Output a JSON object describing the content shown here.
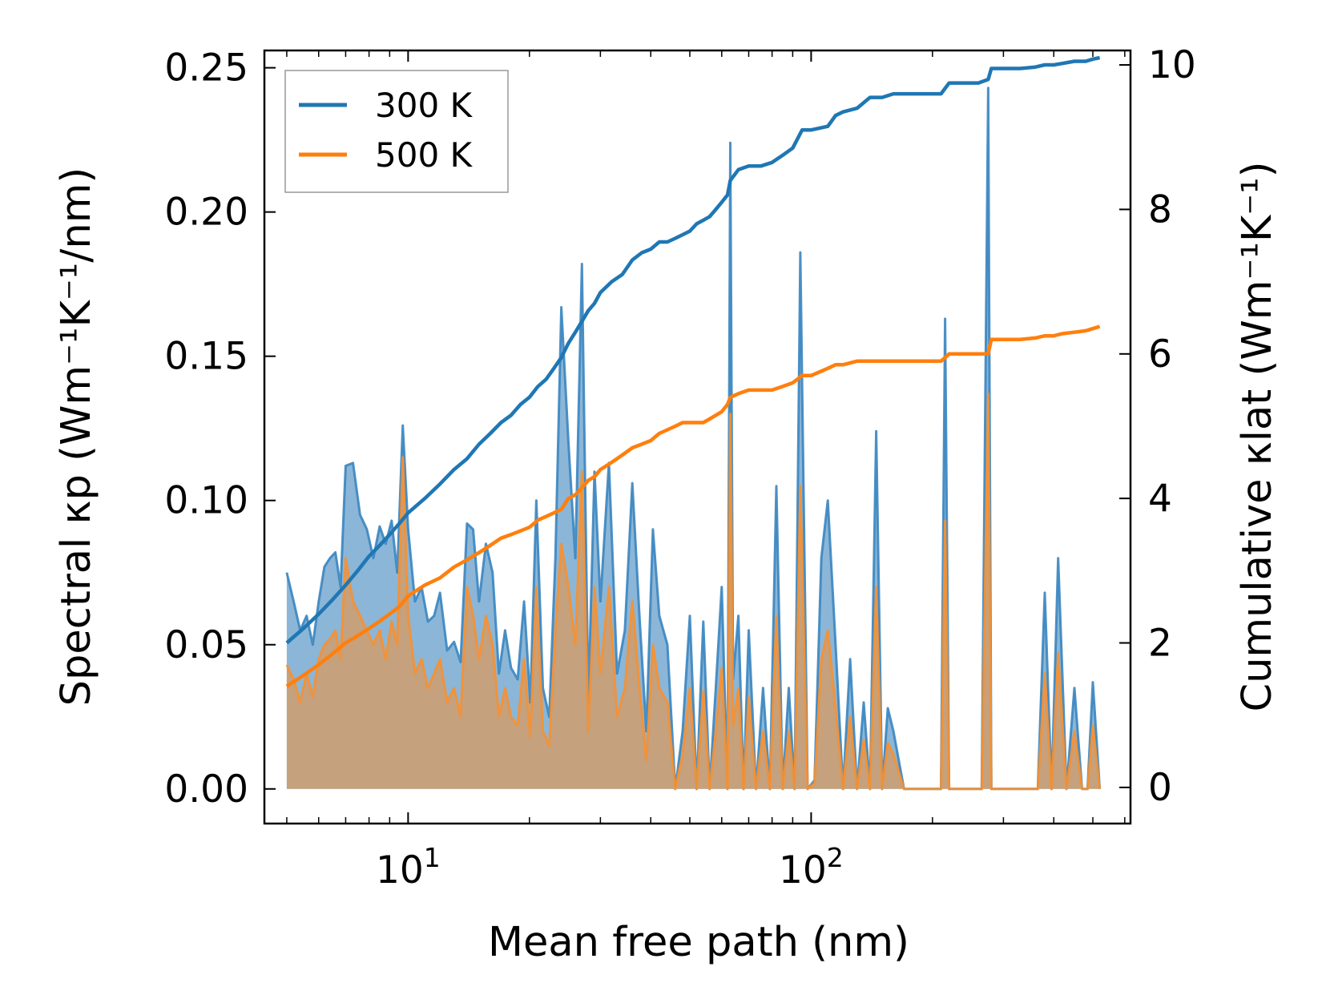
{
  "chart_data": {
    "type": "area",
    "title": "",
    "xlabel": "Mean free path (nm)",
    "ylabel": "Spectral κp (Wm⁻¹K⁻¹/nm)",
    "y2label": "Cumulative κlat (Wm⁻¹K⁻¹)",
    "xscale": "log",
    "xlim": [
      4.4,
      620
    ],
    "ylim": [
      -0.012,
      0.256
    ],
    "y2lim": [
      -0.5,
      10.2
    ],
    "x_ticks": [
      10,
      100
    ],
    "x_tick_labels": [
      "10^1",
      "10^2"
    ],
    "y_ticks": [
      0.0,
      0.05,
      0.1,
      0.15,
      0.2,
      0.25
    ],
    "y_tick_labels": [
      "0.00",
      "0.05",
      "0.10",
      "0.15",
      "0.20",
      "0.25"
    ],
    "y2_ticks": [
      0,
      2,
      4,
      6,
      8,
      10
    ],
    "y2_tick_labels": [
      "0",
      "2",
      "4",
      "6",
      "8",
      "10"
    ],
    "legend": {
      "position": "top-left",
      "entries": [
        "300 K",
        "500 K"
      ]
    },
    "colors": {
      "300 K": "#1f77b4",
      "500 K": "#ff7f0e"
    },
    "spectral": [
      {
        "name": "300 K",
        "x": [
          5.0,
          5.2,
          5.4,
          5.6,
          5.8,
          6.0,
          6.2,
          6.4,
          6.6,
          6.8,
          7.0,
          7.3,
          7.6,
          7.9,
          8.2,
          8.5,
          8.8,
          9.1,
          9.4,
          9.7,
          10.0,
          10.4,
          10.8,
          11.2,
          11.6,
          12.0,
          12.5,
          13.0,
          13.5,
          14.0,
          14.5,
          15.0,
          15.6,
          16.2,
          16.8,
          17.4,
          18.0,
          18.7,
          19.4,
          20.1,
          20.8,
          21.6,
          22.4,
          23.2,
          24.0,
          25.0,
          26.0,
          27.0,
          28.0,
          29.0,
          30.0,
          31.5,
          33.0,
          34.5,
          36.0,
          37.5,
          39.0,
          40.5,
          42.0,
          44.0,
          46.0,
          48.0,
          50.0,
          52.0,
          54.0,
          56.0,
          58.0,
          60.0,
          62.0,
          63.0,
          64.0,
          66.0,
          68.0,
          70.0,
          73.0,
          76.0,
          79.0,
          82.0,
          85.0,
          88.0,
          91.0,
          94.0,
          98.0,
          102.0,
          106.0,
          110.0,
          115.0,
          120.0,
          125.0,
          130.0,
          135.0,
          140.0,
          145.0,
          150.0,
          155.0,
          160.0,
          170.0,
          180.0,
          190.0,
          200.0,
          210.0,
          215.0,
          220.0,
          225.0,
          235.0,
          250.0,
          265.0,
          275.0,
          280.0,
          285.0,
          295.0,
          310.0,
          330.0,
          350.0,
          365.0,
          380.0,
          395.0,
          410.0,
          430.0,
          450.0,
          470.0,
          485.0,
          500.0,
          520.0
        ],
        "values": [
          0.075,
          0.065,
          0.055,
          0.06,
          0.05,
          0.065,
          0.077,
          0.08,
          0.082,
          0.07,
          0.112,
          0.113,
          0.095,
          0.09,
          0.08,
          0.091,
          0.085,
          0.093,
          0.075,
          0.126,
          0.09,
          0.065,
          0.07,
          0.058,
          0.06,
          0.068,
          0.048,
          0.051,
          0.044,
          0.092,
          0.09,
          0.065,
          0.085,
          0.075,
          0.04,
          0.055,
          0.042,
          0.038,
          0.065,
          0.03,
          0.1,
          0.035,
          0.025,
          0.08,
          0.167,
          0.12,
          0.08,
          0.182,
          0.03,
          0.11,
          0.065,
          0.113,
          0.04,
          0.055,
          0.106,
          0.06,
          0.02,
          0.09,
          0.06,
          0.05,
          0.0,
          0.02,
          0.06,
          0.0,
          0.058,
          0.0,
          0.035,
          0.07,
          0.0,
          0.224,
          0.038,
          0.06,
          0.0,
          0.055,
          0.0,
          0.035,
          0.0,
          0.105,
          0.0,
          0.035,
          0.0,
          0.186,
          0.0,
          0.003,
          0.08,
          0.1,
          0.05,
          0.0,
          0.045,
          0.0,
          0.03,
          0.0,
          0.124,
          0.0,
          0.028,
          0.02,
          0.0,
          0.0,
          0.0,
          0.0,
          0.0,
          0.163,
          0.0,
          0.0,
          0.0,
          0.0,
          0.0,
          0.243,
          0.0,
          0.0,
          0.0,
          0.0,
          0.0,
          0.0,
          0.0,
          0.068,
          0.0,
          0.08,
          0.0,
          0.035,
          0.0,
          0.0,
          0.037,
          0.0
        ]
      },
      {
        "name": "500 K",
        "x": [
          5.0,
          5.2,
          5.4,
          5.6,
          5.8,
          6.0,
          6.2,
          6.4,
          6.6,
          6.8,
          7.0,
          7.3,
          7.6,
          7.9,
          8.2,
          8.5,
          8.8,
          9.1,
          9.4,
          9.7,
          10.0,
          10.4,
          10.8,
          11.2,
          11.6,
          12.0,
          12.5,
          13.0,
          13.5,
          14.0,
          14.5,
          15.0,
          15.6,
          16.2,
          16.8,
          17.4,
          18.0,
          18.7,
          19.4,
          20.1,
          20.8,
          21.6,
          22.4,
          23.2,
          24.0,
          25.0,
          26.0,
          27.0,
          28.0,
          29.0,
          30.0,
          31.5,
          33.0,
          34.5,
          36.0,
          37.5,
          39.0,
          40.5,
          42.0,
          44.0,
          46.0,
          48.0,
          50.0,
          52.0,
          54.0,
          56.0,
          58.0,
          60.0,
          62.0,
          63.0,
          64.0,
          66.0,
          68.0,
          70.0,
          73.0,
          76.0,
          79.0,
          82.0,
          85.0,
          88.0,
          91.0,
          94.0,
          98.0,
          102.0,
          106.0,
          110.0,
          115.0,
          120.0,
          125.0,
          130.0,
          135.0,
          140.0,
          145.0,
          150.0,
          155.0,
          160.0,
          170.0,
          180.0,
          190.0,
          200.0,
          210.0,
          215.0,
          220.0,
          225.0,
          235.0,
          250.0,
          265.0,
          275.0,
          280.0,
          285.0,
          295.0,
          310.0,
          330.0,
          350.0,
          365.0,
          380.0,
          395.0,
          410.0,
          430.0,
          450.0,
          470.0,
          485.0,
          500.0,
          520.0
        ],
        "values": [
          0.043,
          0.038,
          0.03,
          0.04,
          0.032,
          0.045,
          0.05,
          0.052,
          0.055,
          0.045,
          0.08,
          0.065,
          0.06,
          0.055,
          0.05,
          0.055,
          0.045,
          0.058,
          0.05,
          0.115,
          0.06,
          0.04,
          0.045,
          0.035,
          0.04,
          0.045,
          0.03,
          0.035,
          0.025,
          0.07,
          0.06,
          0.045,
          0.06,
          0.05,
          0.025,
          0.035,
          0.025,
          0.022,
          0.045,
          0.018,
          0.07,
          0.02,
          0.015,
          0.055,
          0.085,
          0.07,
          0.05,
          0.11,
          0.02,
          0.07,
          0.04,
          0.07,
          0.025,
          0.035,
          0.065,
          0.035,
          0.01,
          0.05,
          0.035,
          0.03,
          0.0,
          0.012,
          0.035,
          0.0,
          0.034,
          0.0,
          0.02,
          0.042,
          0.0,
          0.13,
          0.022,
          0.035,
          0.0,
          0.032,
          0.0,
          0.02,
          0.0,
          0.06,
          0.0,
          0.02,
          0.0,
          0.105,
          0.0,
          0.002,
          0.045,
          0.055,
          0.028,
          0.0,
          0.025,
          0.0,
          0.017,
          0.0,
          0.07,
          0.0,
          0.016,
          0.012,
          0.0,
          0.0,
          0.0,
          0.0,
          0.0,
          0.093,
          0.0,
          0.0,
          0.0,
          0.0,
          0.0,
          0.137,
          0.0,
          0.0,
          0.0,
          0.0,
          0.0,
          0.0,
          0.0,
          0.04,
          0.0,
          0.047,
          0.0,
          0.02,
          0.0,
          0.0,
          0.022,
          0.0
        ]
      }
    ],
    "cumulative": [
      {
        "name": "300 K",
        "x": [
          5.0,
          5.5,
          6.0,
          6.5,
          7.0,
          7.5,
          8.0,
          8.5,
          9.0,
          9.5,
          10.0,
          11.0,
          12.0,
          13.0,
          14.0,
          15.0,
          16.0,
          17.0,
          18.0,
          19.0,
          20.0,
          21.0,
          22.0,
          23.0,
          24.0,
          25.0,
          26.0,
          27.0,
          28.0,
          29.0,
          30.0,
          32.0,
          34.0,
          36.0,
          38.0,
          40.0,
          42.0,
          44.0,
          46.0,
          48.0,
          50.0,
          52.0,
          54.0,
          56.0,
          58.0,
          60.0,
          62.0,
          63.0,
          66.0,
          70.0,
          75.0,
          80.0,
          85.0,
          90.0,
          95.0,
          100.0,
          110.0,
          115.0,
          120.0,
          130.0,
          140.0,
          150.0,
          160.0,
          180.0,
          200.0,
          210.0,
          220.0,
          240.0,
          260.0,
          275.0,
          280.0,
          285.0,
          300.0,
          330.0,
          360.0,
          380.0,
          400.0,
          420.0,
          450.0,
          480.0,
          500.0,
          520.0
        ],
        "values": [
          2.0,
          2.2,
          2.4,
          2.6,
          2.8,
          3.0,
          3.2,
          3.35,
          3.5,
          3.65,
          3.8,
          4.0,
          4.2,
          4.4,
          4.55,
          4.75,
          4.9,
          5.05,
          5.15,
          5.3,
          5.4,
          5.55,
          5.65,
          5.8,
          5.95,
          6.15,
          6.3,
          6.45,
          6.6,
          6.7,
          6.85,
          7.0,
          7.1,
          7.3,
          7.4,
          7.45,
          7.55,
          7.55,
          7.6,
          7.65,
          7.7,
          7.8,
          7.85,
          7.9,
          8.0,
          8.1,
          8.2,
          8.4,
          8.55,
          8.6,
          8.6,
          8.65,
          8.75,
          8.85,
          9.1,
          9.1,
          9.15,
          9.3,
          9.35,
          9.4,
          9.55,
          9.55,
          9.6,
          9.6,
          9.6,
          9.6,
          9.75,
          9.75,
          9.75,
          9.8,
          9.95,
          9.95,
          9.95,
          9.95,
          9.97,
          10.0,
          10.0,
          10.02,
          10.05,
          10.05,
          10.08,
          10.1
        ]
      },
      {
        "name": "500 K",
        "x": [
          5.0,
          5.5,
          6.0,
          6.5,
          7.0,
          7.5,
          8.0,
          8.5,
          9.0,
          9.5,
          10.0,
          11.0,
          12.0,
          13.0,
          14.0,
          15.0,
          16.0,
          17.0,
          18.0,
          19.0,
          20.0,
          21.0,
          22.0,
          23.0,
          24.0,
          25.0,
          26.0,
          27.0,
          28.0,
          29.0,
          30.0,
          32.0,
          34.0,
          36.0,
          38.0,
          40.0,
          42.0,
          44.0,
          46.0,
          48.0,
          50.0,
          52.0,
          54.0,
          56.0,
          58.0,
          60.0,
          62.0,
          63.0,
          66.0,
          70.0,
          75.0,
          80.0,
          85.0,
          90.0,
          95.0,
          100.0,
          110.0,
          115.0,
          120.0,
          130.0,
          140.0,
          150.0,
          160.0,
          180.0,
          200.0,
          210.0,
          220.0,
          240.0,
          260.0,
          275.0,
          280.0,
          285.0,
          300.0,
          330.0,
          360.0,
          380.0,
          400.0,
          420.0,
          450.0,
          480.0,
          500.0,
          520.0
        ],
        "values": [
          1.4,
          1.55,
          1.7,
          1.85,
          2.0,
          2.1,
          2.2,
          2.3,
          2.4,
          2.5,
          2.65,
          2.8,
          2.9,
          3.05,
          3.15,
          3.25,
          3.35,
          3.45,
          3.5,
          3.55,
          3.6,
          3.7,
          3.75,
          3.8,
          3.85,
          4.0,
          4.05,
          4.15,
          4.25,
          4.3,
          4.4,
          4.5,
          4.6,
          4.7,
          4.75,
          4.8,
          4.9,
          4.95,
          5.0,
          5.05,
          5.05,
          5.05,
          5.05,
          5.1,
          5.15,
          5.2,
          5.3,
          5.4,
          5.45,
          5.5,
          5.5,
          5.5,
          5.55,
          5.6,
          5.7,
          5.7,
          5.8,
          5.85,
          5.85,
          5.9,
          5.9,
          5.9,
          5.9,
          5.9,
          5.9,
          5.9,
          6.0,
          6.0,
          6.0,
          6.0,
          6.2,
          6.2,
          6.2,
          6.2,
          6.22,
          6.25,
          6.25,
          6.28,
          6.3,
          6.32,
          6.35,
          6.38
        ]
      }
    ]
  }
}
